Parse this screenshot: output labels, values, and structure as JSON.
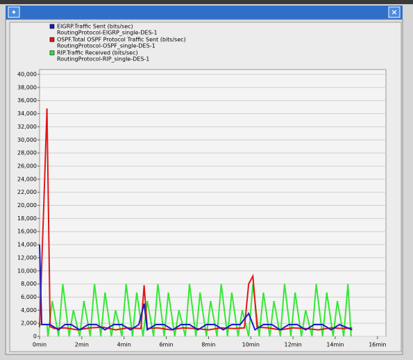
{
  "chart_data": {
    "type": "line",
    "series": [
      {
        "name": "EIGRP.Traffic Sent (bits/sec)",
        "scenario": "RoutingProtocol-EIGRP_single-DES-1",
        "color": "#1a1acc",
        "x": [
          0,
          0.1,
          0.5,
          0.9,
          1.2,
          1.5,
          1.9,
          2.3,
          2.7,
          3.1,
          3.5,
          3.9,
          4.3,
          4.7,
          4.95,
          5.1,
          5.5,
          5.9,
          6.3,
          6.7,
          7.1,
          7.5,
          7.9,
          8.3,
          8.7,
          9.1,
          9.5,
          9.9,
          10.2,
          10.6,
          11,
          11.4,
          11.8,
          12.2,
          12.6,
          13,
          13.4,
          13.8,
          14.2,
          14.8
        ],
        "values": [
          14000,
          1800,
          1800,
          1000,
          1800,
          1800,
          1000,
          1800,
          1800,
          1000,
          1800,
          1800,
          1000,
          1800,
          5000,
          1000,
          1800,
          1800,
          1000,
          1800,
          1800,
          1000,
          1800,
          1800,
          1000,
          1800,
          1800,
          3500,
          1000,
          1800,
          1800,
          1000,
          1800,
          1800,
          1000,
          1800,
          1800,
          1000,
          1800,
          1000
        ]
      },
      {
        "name": "OSPF.Total OSPF Protocol Traffic Sent (bits/sec)",
        "scenario": "RoutingProtocol-OSPF_single-DES-1",
        "color": "#e01818",
        "x": [
          0,
          0.2,
          0.35,
          0.5,
          0.7,
          1.2,
          1.8,
          2.4,
          3,
          3.6,
          4.2,
          4.8,
          4.95,
          5.1,
          5.6,
          6.2,
          6.8,
          7.4,
          8,
          8.6,
          9.2,
          9.7,
          9.9,
          10.1,
          10.3,
          10.8,
          11.4,
          12,
          12.6,
          13.2,
          13.8,
          14.4,
          14.8
        ],
        "values": [
          1400,
          20000,
          34800,
          1500,
          1200,
          1300,
          1000,
          1300,
          1400,
          1000,
          1300,
          1200,
          7800,
          1200,
          1300,
          1000,
          1300,
          1200,
          1000,
          1300,
          1200,
          1300,
          8000,
          9200,
          1400,
          1300,
          1000,
          1300,
          1200,
          1000,
          1300,
          1200,
          1300
        ]
      },
      {
        "name": "RIP.Traffic Received (bits/sec)",
        "scenario": "RoutingProtocol-RIP_single-DES-1",
        "color": "#33e833",
        "x": [
          0,
          0.35,
          0.4,
          0.6,
          0.9,
          1.1,
          1.4,
          1.6,
          1.9,
          2.1,
          2.4,
          2.6,
          2.9,
          3.1,
          3.4,
          3.6,
          3.9,
          4.1,
          4.4,
          4.6,
          4.9,
          5.1,
          5.4,
          5.6,
          5.9,
          6.1,
          6.4,
          6.6,
          6.9,
          7.1,
          7.4,
          7.6,
          7.9,
          8.1,
          8.4,
          8.6,
          8.9,
          9.1,
          9.4,
          9.6,
          9.9,
          10.1,
          10.4,
          10.6,
          10.9,
          11.1,
          11.4,
          11.6,
          11.9,
          12.1,
          12.4,
          12.6,
          12.9,
          13.1,
          13.4,
          13.6,
          13.9,
          14.1,
          14.4,
          14.6,
          14.75
        ],
        "values": [
          1800,
          1800,
          0,
          5400,
          0,
          8000,
          0,
          4000,
          0,
          5400,
          0,
          8000,
          0,
          6700,
          0,
          4000,
          0,
          8000,
          0,
          6700,
          0,
          5400,
          0,
          8000,
          0,
          6700,
          0,
          4000,
          0,
          8000,
          0,
          6700,
          0,
          5400,
          0,
          8000,
          0,
          6700,
          0,
          4000,
          0,
          8000,
          0,
          6700,
          0,
          5400,
          0,
          8000,
          0,
          6700,
          0,
          4000,
          0,
          8000,
          0,
          6700,
          0,
          5400,
          0,
          8000,
          0
        ]
      }
    ],
    "xlim": [
      0,
      16.4
    ],
    "xticks": [
      {
        "value": 0,
        "label": "0min"
      },
      {
        "value": 2,
        "label": "2min"
      },
      {
        "value": 4,
        "label": "4min"
      },
      {
        "value": 6,
        "label": "6min"
      },
      {
        "value": 8,
        "label": "8min"
      },
      {
        "value": 10,
        "label": "10min"
      },
      {
        "value": 12,
        "label": "12min"
      },
      {
        "value": 14,
        "label": "14min"
      },
      {
        "value": 16,
        "label": "16min"
      }
    ],
    "ylim": [
      0,
      40000
    ],
    "yticks": [
      0,
      {
        "value": 2000,
        "label": "2,000"
      },
      {
        "value": 4000,
        "label": "4,000"
      },
      {
        "value": 6000,
        "label": "6,000"
      },
      {
        "value": 8000,
        "label": "8,000"
      },
      {
        "value": 10000,
        "label": "10,000"
      },
      {
        "value": 12000,
        "label": "12,000"
      },
      {
        "value": 14000,
        "label": "14,000"
      },
      {
        "value": 16000,
        "label": "16,000"
      },
      {
        "value": 18000,
        "label": "18,000"
      },
      {
        "value": 20000,
        "label": "20,000"
      },
      {
        "value": 22000,
        "label": "22,000"
      },
      {
        "value": 24000,
        "label": "24,000"
      },
      {
        "value": 26000,
        "label": "26,000"
      },
      {
        "value": 28000,
        "label": "28,000"
      },
      {
        "value": 30000,
        "label": "30,000"
      },
      {
        "value": 32000,
        "label": "32,000"
      },
      {
        "value": 34000,
        "label": "34,000"
      },
      {
        "value": 36000,
        "label": "36,000"
      },
      {
        "value": 38000,
        "label": "38,000"
      },
      {
        "value": 40000,
        "label": "40,000"
      }
    ],
    "grid": true
  }
}
